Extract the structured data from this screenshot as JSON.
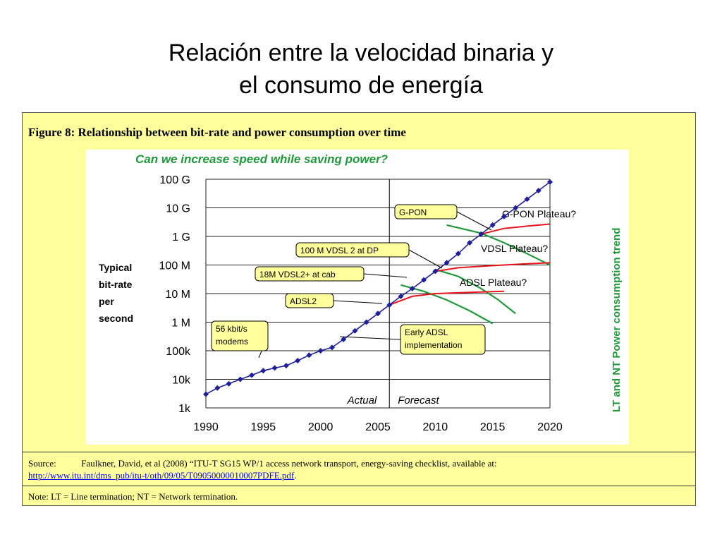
{
  "slide": {
    "title_line1": "Relación entre la velocidad binaria y",
    "title_line2": "el consumo de energía"
  },
  "figure": {
    "caption": "Figure 8: Relationship between bit-rate and power consumption over time",
    "source_label": "Source:",
    "source_text": "Faulkner, David, et al (2008) “ITU-T SG15 WP/1 access network transport, energy-saving checklist, available at:",
    "source_url": "http://www.itu.int/dms_pub/itu-t/oth/09/05/T09050000010007PDFE.pdf",
    "source_end": ".",
    "note": "Note: LT = Line termination; NT = Network termination."
  },
  "chart_data": {
    "type": "line",
    "title": "Can we increase speed while saving power?",
    "ylabel": [
      "Typical",
      "bit-rate",
      "per",
      "second"
    ],
    "right_label": "LT and NT Power consumption trend",
    "x_ticks": [
      1990,
      1995,
      2000,
      2005,
      2010,
      2015,
      2020
    ],
    "y_ticks": [
      "1k",
      "10k",
      "100k",
      "1 M",
      "10 M",
      "100 M",
      "1 G",
      "10 G",
      "100 G"
    ],
    "xlim": [
      1990,
      2020
    ],
    "ylim_log10": [
      3,
      11
    ],
    "y_scale": "log",
    "divider_year": 2006,
    "region_labels": {
      "left": "Actual",
      "right": "Forecast"
    },
    "colors": {
      "trend": "#1f1f9a",
      "plateau": "#e8141e",
      "power": "#1f9a3a",
      "callout_fill": "#fefe9c"
    },
    "series": [
      {
        "name": "Typical bit-rate",
        "x": [
          1990,
          1991,
          1992,
          1993,
          1994,
          1995,
          1996,
          1997,
          1998,
          1999,
          2000,
          2001,
          2002,
          2003,
          2004,
          2005,
          2006,
          2007,
          2008,
          2009,
          2010,
          2011,
          2012,
          2013,
          2014,
          2015,
          2016,
          2017,
          2018,
          2019,
          2020
        ],
        "y": [
          3000,
          5000,
          7000,
          10000,
          14000,
          20000,
          25000,
          30000,
          45000,
          70000,
          100000,
          130000,
          250000,
          500000,
          1000000,
          2000000,
          4000000,
          8000000,
          15000000,
          30000000,
          60000000,
          120000000,
          250000000,
          600000000,
          1200000000,
          2500000000,
          5000000000,
          10000000000,
          20000000000,
          40000000000,
          80000000000
        ]
      }
    ],
    "plateaus": [
      {
        "label": "G-PON Plateau?",
        "x": [
          2014,
          2016,
          2018,
          2020
        ],
        "y": [
          1200000000,
          1900000000,
          2300000000,
          2700000000
        ]
      },
      {
        "label": "VDSL Plateau?",
        "x": [
          2010,
          2012,
          2015,
          2018,
          2020
        ],
        "y": [
          60000000,
          80000000,
          95000000,
          110000000,
          120000000
        ]
      },
      {
        "label": "ADSL Plateau?",
        "x": [
          2006,
          2008,
          2010,
          2013,
          2016
        ],
        "y": [
          4000000,
          8000000,
          10000000,
          11000000,
          12000000
        ]
      }
    ],
    "power_curves": [
      {
        "x": [
          2011,
          2014,
          2016,
          2018,
          2020
        ],
        "y": [
          2500000000,
          1300000000,
          600000000,
          250000000,
          100000000
        ]
      },
      {
        "x": [
          2010,
          2012,
          2014,
          2015.5,
          2017
        ],
        "y": [
          70000000,
          40000000,
          15000000,
          6000000,
          2000000
        ]
      },
      {
        "x": [
          2007,
          2009,
          2011,
          2013,
          2015
        ],
        "y": [
          20000000,
          12000000,
          6000000,
          2500000,
          900000
        ]
      }
    ],
    "callouts": [
      {
        "label": "G-PON",
        "lines": [
          "G-PON"
        ]
      },
      {
        "label": "100 M VDSL 2 at DP",
        "lines": [
          "100 M VDSL 2 at DP"
        ]
      },
      {
        "label": "18M VDSL2+ at cab",
        "lines": [
          "18M VDSL2+ at cab"
        ]
      },
      {
        "label": "ADSL2",
        "lines": [
          "ADSL2"
        ]
      },
      {
        "label": "56 kbit/s modems",
        "lines": [
          "56 kbit/s",
          "modems"
        ]
      },
      {
        "label": "Early ADSL implementation",
        "lines": [
          "Early ADSL",
          "implementation"
        ]
      }
    ]
  }
}
